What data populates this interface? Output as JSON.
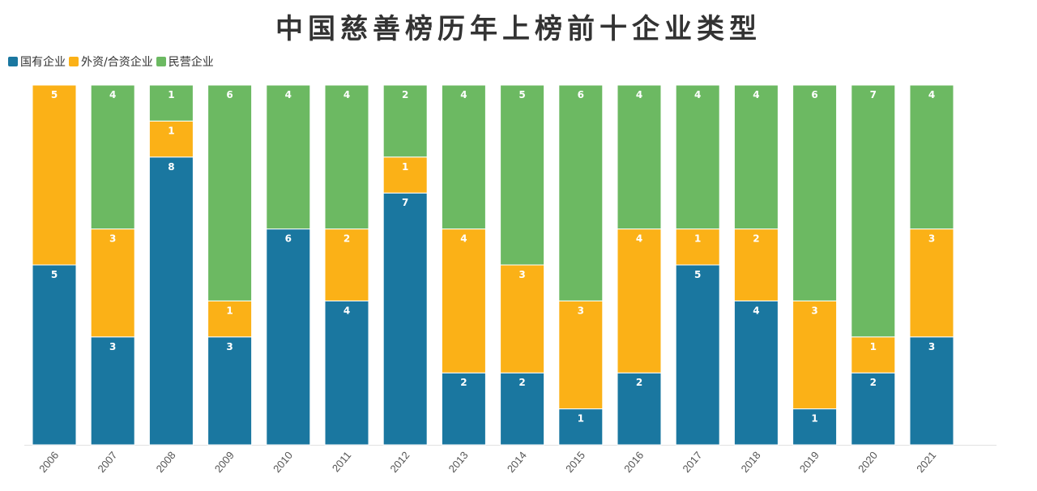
{
  "chart_data": {
    "type": "bar",
    "stacked": true,
    "title": "中国慈善榜历年上榜前十企业类型",
    "categories": [
      "2006",
      "2007",
      "2008",
      "2009",
      "2010",
      "2011",
      "2012",
      "2013",
      "2014",
      "2015",
      "2016",
      "2017",
      "2018",
      "2019",
      "2020",
      "2021"
    ],
    "series": [
      {
        "name": "国有企业",
        "color": "#1a77a0",
        "values": [
          5,
          3,
          8,
          3,
          6,
          4,
          7,
          2,
          2,
          1,
          2,
          5,
          4,
          1,
          2,
          3
        ]
      },
      {
        "name": "外资/合资企业",
        "color": "#fbb117",
        "values": [
          5,
          3,
          1,
          1,
          0,
          2,
          1,
          4,
          3,
          3,
          4,
          1,
          2,
          3,
          1,
          3
        ]
      },
      {
        "name": "民营企业",
        "color": "#6cb962",
        "values": [
          0,
          4,
          1,
          6,
          4,
          4,
          2,
          4,
          5,
          6,
          4,
          4,
          4,
          6,
          7,
          4
        ]
      }
    ],
    "ylim": [
      0,
      10
    ],
    "legend_position": "top-left",
    "grid": false
  }
}
